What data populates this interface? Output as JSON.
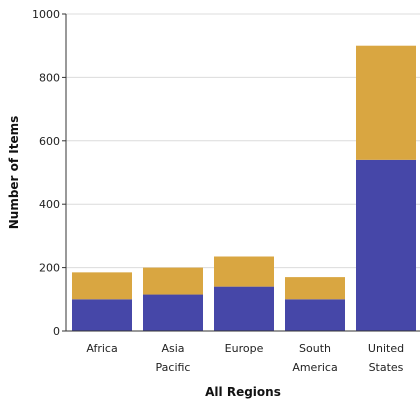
{
  "chart_data": {
    "type": "bar",
    "stacked": true,
    "categories": [
      [
        "Africa"
      ],
      [
        "Asia",
        "Pacific"
      ],
      [
        "Europe"
      ],
      [
        "South",
        "America"
      ],
      [
        "United",
        "States"
      ]
    ],
    "series": [
      {
        "color": "#4647a8",
        "values": [
          100,
          115,
          140,
          100,
          540
        ]
      },
      {
        "color": "#d9a641",
        "values": [
          85,
          85,
          95,
          70,
          360
        ]
      }
    ],
    "xlabel": "All Regions",
    "ylabel": "Number of Items",
    "ylim": [
      0,
      1000
    ],
    "yticks": [
      0,
      200,
      400,
      600,
      800,
      1000
    ],
    "grid": true,
    "legend": "none"
  }
}
